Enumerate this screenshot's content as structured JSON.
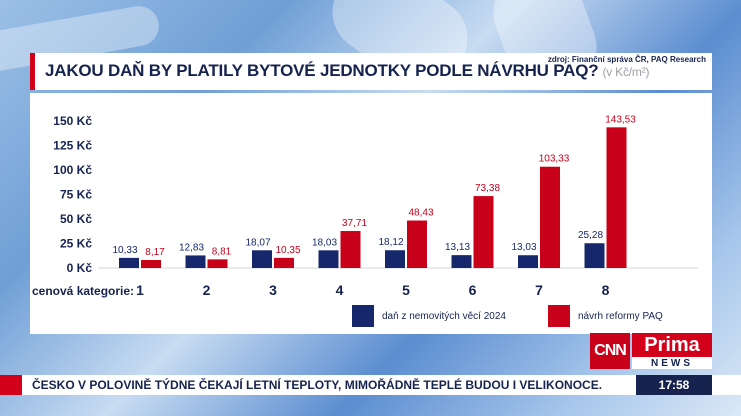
{
  "header": {
    "title": "JAKOU DAŇ BY PLATILY BYTOVÉ JEDNOTKY PODLE NÁVRHU PAQ?",
    "unit": "(v Kč/m²)",
    "source": "zdroj: Finanční správa ČR, PAQ Research"
  },
  "chart_data": {
    "type": "bar",
    "title": "JAKOU DAŇ BY PLATILY BYTOVÉ JEDNOTKY PODLE NÁVRHU PAQ?",
    "xlabel": "cenová kategorie:",
    "ylabel": "",
    "categories": [
      "1",
      "2",
      "3",
      "4",
      "5",
      "6",
      "7",
      "8"
    ],
    "series": [
      {
        "name": "daň z nemovitých věcí 2024",
        "color": "#16286b",
        "values": [
          10.33,
          12.83,
          18.07,
          18.03,
          18.12,
          13.13,
          13.03,
          25.28
        ],
        "labels": [
          "10,33",
          "12,83",
          "18,07",
          "18,03",
          "18,12",
          "13,13",
          "13,03",
          "25,28"
        ]
      },
      {
        "name": "návrh reformy PAQ",
        "color": "#c8001a",
        "values": [
          8.17,
          8.81,
          10.35,
          37.71,
          48.43,
          73.38,
          103.33,
          143.53
        ],
        "labels": [
          "8,17",
          "8,81",
          "10,35",
          "37,71",
          "48,43",
          "73,38",
          "103,33",
          "143,53"
        ]
      }
    ],
    "ylim": [
      0,
      150
    ],
    "yticks": [
      0,
      25,
      50,
      75,
      100,
      125,
      150
    ],
    "ytick_labels": [
      "0 Kč",
      "25 Kč",
      "50 Kč",
      "75 Kč",
      "100 Kč",
      "125 Kč",
      "150 Kč"
    ],
    "grid": false,
    "legend": "bottom-right"
  },
  "branding": {
    "cnn": "CNN",
    "prima": "Prima",
    "news": "NEWS"
  },
  "ticker": {
    "text": "ČESKO V POLOVINĚ TÝDNE ČEKAJÍ LETNÍ TEPLOTY, MIMOŘÁDNĚ TEPLÉ BUDOU I VELIKONOCE.",
    "time": "17:58"
  }
}
